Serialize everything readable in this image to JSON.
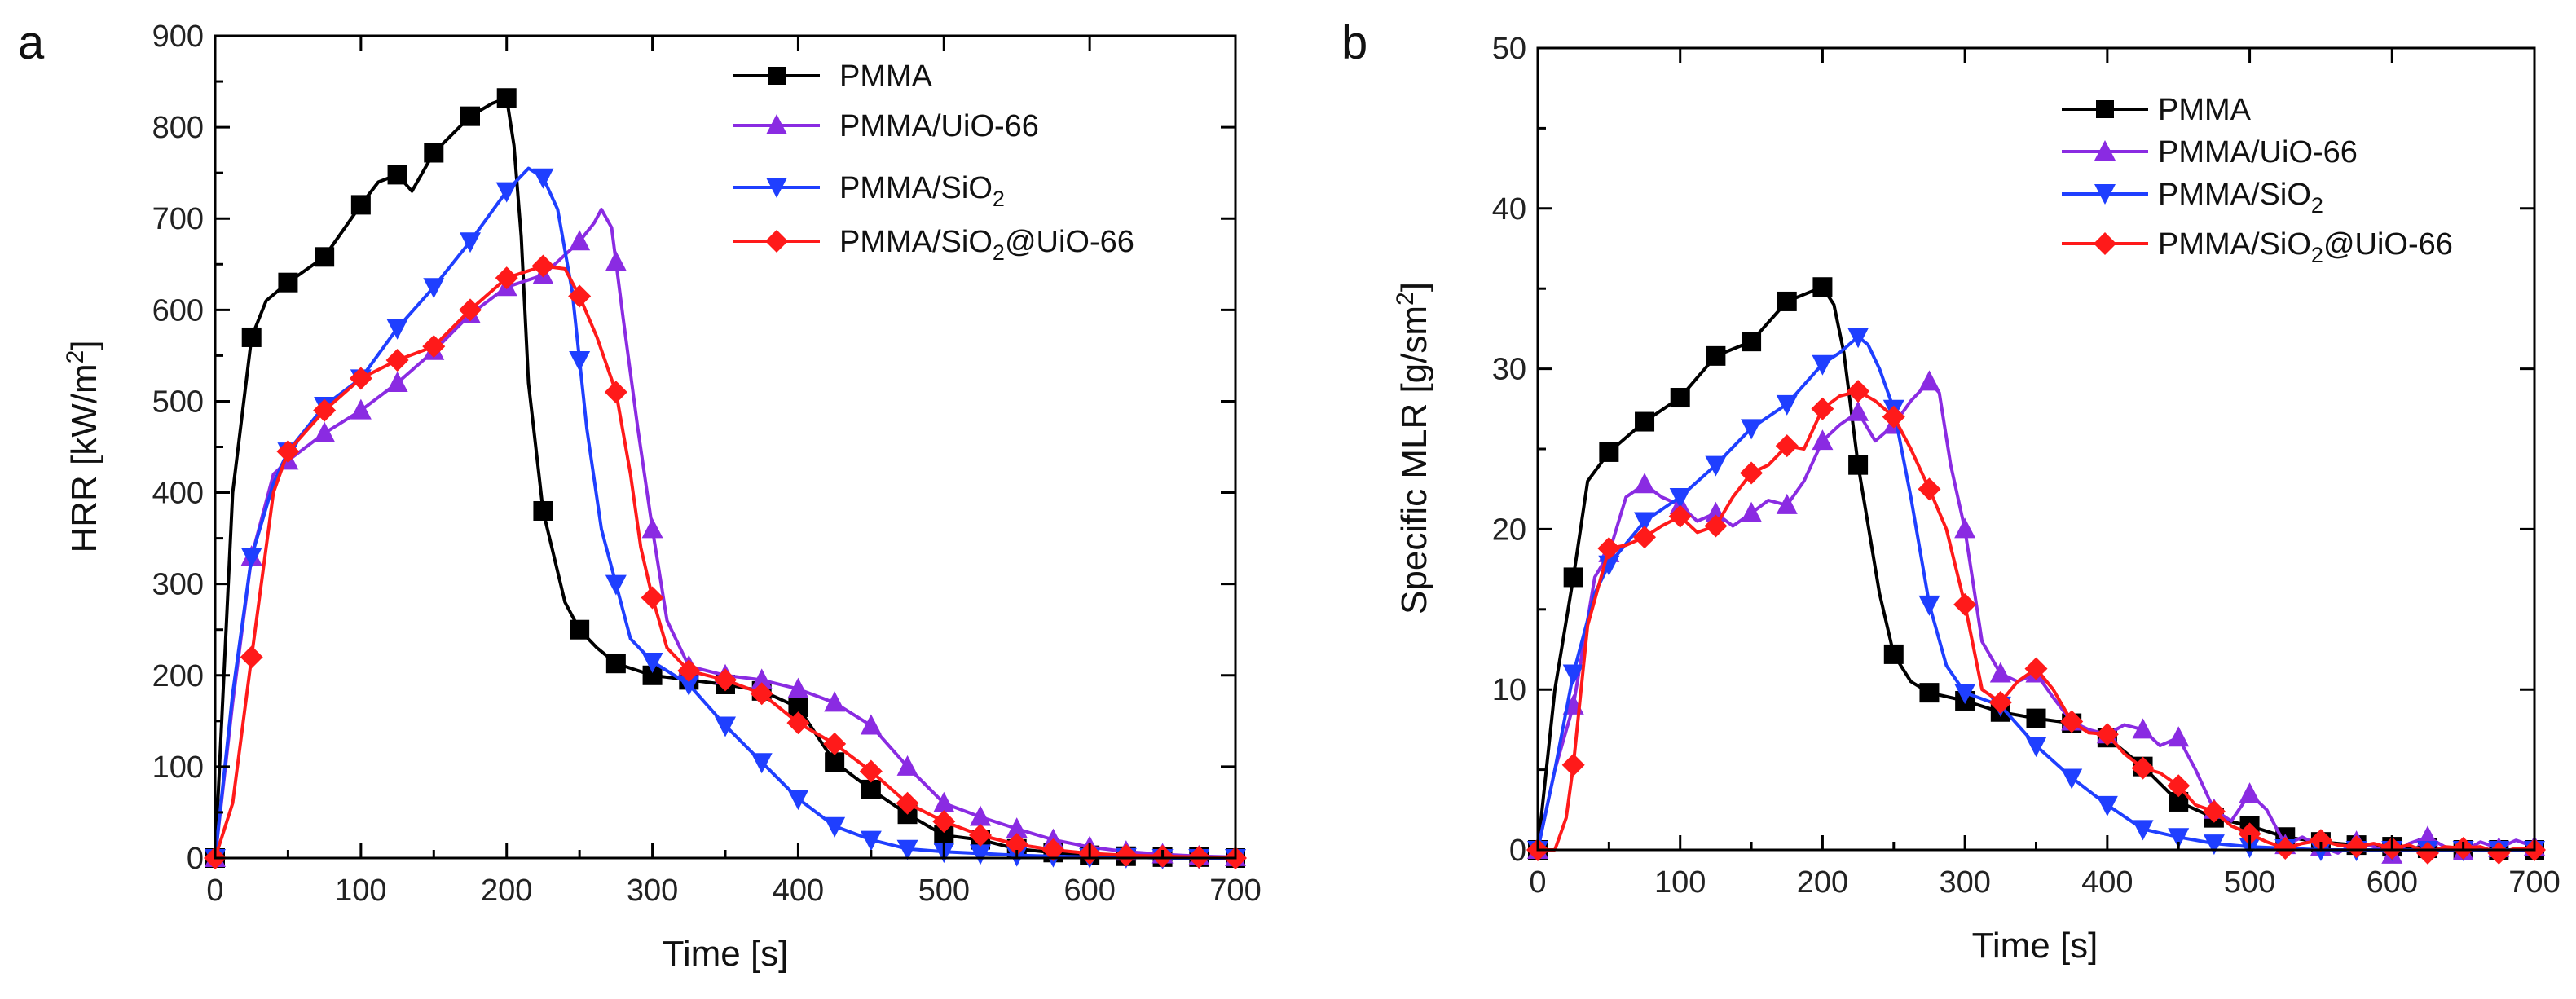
{
  "figure": {
    "panels": [
      "a",
      "b"
    ]
  },
  "legend": {
    "pmma": "PMMA",
    "uio": "PMMA/UiO-66",
    "sio2_base": "PMMA/SiO",
    "sio2_sub": "2",
    "sio2uio_base": "PMMA/SiO",
    "sio2uio_sub": "2",
    "sio2uio_suffix": "@UiO-66"
  },
  "chart_data": [
    {
      "type": "line",
      "panel": "a",
      "xlabel": "Time [s]",
      "ylabel_base": "HRR [kW/m",
      "ylabel_sup": "2",
      "ylabel_end": "]",
      "xlim": [
        0,
        700
      ],
      "ylim": [
        0,
        900
      ],
      "xticks": [
        0,
        100,
        200,
        300,
        400,
        500,
        600,
        700
      ],
      "yticks": [
        0,
        100,
        200,
        300,
        400,
        500,
        600,
        700,
        800,
        900
      ],
      "series": [
        {
          "name": "PMMA",
          "color": "#000000",
          "marker": "square",
          "x": [
            0,
            12,
            25,
            35,
            50,
            75,
            100,
            112,
            125,
            135,
            150,
            175,
            190,
            200,
            205,
            210,
            215,
            225,
            240,
            250,
            262,
            275,
            300,
            325,
            350,
            375,
            400,
            425,
            450,
            475,
            500,
            525,
            550,
            575,
            600,
            625,
            650,
            675,
            700
          ],
          "y": [
            0,
            400,
            570,
            610,
            630,
            658,
            715,
            740,
            748,
            730,
            772,
            812,
            826,
            832,
            780,
            680,
            520,
            380,
            280,
            250,
            230,
            213,
            200,
            195,
            190,
            183,
            165,
            105,
            75,
            48,
            25,
            20,
            10,
            6,
            3,
            2,
            1,
            1,
            0
          ],
          "markers": [
            0,
            25,
            50,
            75,
            100,
            125,
            150,
            175,
            200,
            225,
            250,
            275,
            300,
            325,
            350,
            375,
            400,
            425,
            450,
            475,
            500,
            525,
            550,
            575,
            600,
            625,
            650,
            675,
            700
          ]
        },
        {
          "name": "PMMA/UiO-66",
          "color": "#8a2be2",
          "marker": "triangle-up",
          "x": [
            0,
            12,
            25,
            40,
            50,
            75,
            100,
            125,
            150,
            175,
            200,
            225,
            250,
            260,
            265,
            272,
            280,
            290,
            300,
            310,
            325,
            350,
            375,
            400,
            425,
            450,
            475,
            500,
            525,
            550,
            575,
            600,
            625,
            650,
            675,
            700
          ],
          "y": [
            0,
            170,
            330,
            420,
            435,
            465,
            490,
            520,
            555,
            595,
            625,
            638,
            675,
            695,
            710,
            690,
            590,
            470,
            360,
            260,
            210,
            200,
            195,
            185,
            170,
            145,
            100,
            60,
            45,
            32,
            20,
            12,
            7,
            4,
            2,
            1
          ],
          "markers": [
            0,
            25,
            50,
            75,
            100,
            125,
            150,
            175,
            200,
            225,
            250,
            275,
            300,
            325,
            350,
            375,
            400,
            425,
            450,
            475,
            500,
            525,
            550,
            575,
            600,
            625,
            650,
            675,
            700
          ]
        },
        {
          "name": "PMMA/SiO2",
          "color": "#1f3fff",
          "marker": "triangle-down",
          "x": [
            0,
            12,
            25,
            40,
            50,
            75,
            100,
            125,
            150,
            175,
            200,
            215,
            225,
            235,
            245,
            255,
            265,
            275,
            285,
            300,
            325,
            350,
            375,
            400,
            425,
            450,
            475,
            500,
            525,
            550,
            575,
            600,
            625,
            650,
            675,
            700
          ],
          "y": [
            0,
            180,
            330,
            410,
            445,
            495,
            525,
            580,
            625,
            675,
            730,
            755,
            745,
            710,
            620,
            470,
            360,
            300,
            240,
            215,
            190,
            145,
            105,
            65,
            35,
            20,
            10,
            7,
            5,
            3,
            2,
            1,
            1,
            0,
            0,
            0
          ],
          "markers": [
            0,
            25,
            50,
            75,
            100,
            125,
            150,
            175,
            200,
            225,
            250,
            275,
            300,
            325,
            350,
            375,
            400,
            425,
            450,
            475,
            500,
            525,
            550,
            575,
            600,
            625,
            650,
            675,
            700
          ]
        },
        {
          "name": "PMMA/SiO2@UiO-66",
          "color": "#ff1a1a",
          "marker": "diamond",
          "x": [
            0,
            12,
            25,
            40,
            50,
            75,
            100,
            125,
            150,
            175,
            200,
            225,
            240,
            250,
            262,
            275,
            285,
            292,
            300,
            310,
            325,
            350,
            375,
            400,
            425,
            450,
            475,
            500,
            525,
            550,
            575,
            600,
            625,
            650,
            675,
            700
          ],
          "y": [
            0,
            60,
            220,
            400,
            445,
            490,
            525,
            545,
            560,
            600,
            635,
            648,
            645,
            615,
            570,
            510,
            420,
            340,
            285,
            230,
            205,
            195,
            180,
            148,
            125,
            95,
            60,
            40,
            25,
            15,
            9,
            5,
            3,
            2,
            1,
            0
          ],
          "markers": [
            0,
            25,
            50,
            75,
            100,
            125,
            150,
            175,
            200,
            225,
            250,
            275,
            300,
            325,
            350,
            375,
            400,
            425,
            450,
            475,
            500,
            525,
            550,
            575,
            600,
            625,
            650,
            675,
            700
          ]
        }
      ]
    },
    {
      "type": "line",
      "panel": "b",
      "xlabel": "Time [s]",
      "ylabel_base": "Specific MLR [g/sm",
      "ylabel_sup": "2",
      "ylabel_end": "]",
      "xlim": [
        0,
        700
      ],
      "ylim": [
        0,
        50
      ],
      "xticks": [
        0,
        100,
        200,
        300,
        400,
        500,
        600,
        700
      ],
      "yticks": [
        0,
        10,
        20,
        30,
        40,
        50
      ],
      "series": [
        {
          "name": "PMMA",
          "color": "#000000",
          "marker": "square",
          "x": [
            0,
            12,
            25,
            35,
            50,
            75,
            100,
            125,
            150,
            175,
            200,
            208,
            215,
            225,
            240,
            250,
            262,
            275,
            300,
            325,
            350,
            375,
            400,
            425,
            450,
            475,
            500,
            525,
            550,
            575,
            600,
            625,
            650,
            675,
            700
          ],
          "y": [
            0,
            10,
            17,
            23,
            24.8,
            26.7,
            28.2,
            30.8,
            31.7,
            34.2,
            35.1,
            34.0,
            31.0,
            24.0,
            16.0,
            12.2,
            10.5,
            9.8,
            9.3,
            8.6,
            8.2,
            7.9,
            7.0,
            5.2,
            3.0,
            2.0,
            1.5,
            0.8,
            0.5,
            0.3,
            0.2,
            0.1,
            0,
            0,
            0
          ],
          "markers": [
            0,
            25,
            50,
            75,
            100,
            125,
            150,
            175,
            200,
            225,
            250,
            275,
            300,
            325,
            350,
            375,
            400,
            425,
            450,
            475,
            500,
            525,
            550,
            575,
            600,
            625,
            650,
            675,
            700
          ]
        },
        {
          "name": "PMMA/UiO-66",
          "color": "#8a2be2",
          "marker": "triangle-up",
          "x": [
            0,
            12,
            25,
            40,
            50,
            62,
            75,
            87,
            100,
            112,
            125,
            137,
            150,
            162,
            175,
            187,
            200,
            212,
            225,
            237,
            250,
            262,
            275,
            282,
            290,
            300,
            312,
            325,
            337,
            350,
            362,
            375,
            387,
            400,
            412,
            425,
            437,
            450,
            462,
            475,
            487,
            500,
            512,
            525,
            537,
            550,
            562,
            575,
            587,
            600,
            612,
            625,
            637,
            650,
            662,
            675,
            687,
            700
          ],
          "y": [
            0,
            5,
            9,
            17,
            18.5,
            22,
            22.8,
            22.0,
            21.5,
            20.5,
            21.0,
            20.2,
            21.0,
            21.8,
            21.5,
            23.0,
            25.5,
            26.5,
            27.3,
            25.5,
            26.5,
            28.0,
            29.2,
            28.5,
            24.0,
            20.0,
            13.0,
            11.0,
            10.5,
            11.0,
            9.5,
            8.0,
            7.5,
            7.2,
            7.8,
            7.5,
            6.5,
            7.0,
            5.0,
            2.5,
            1.8,
            3.5,
            2.5,
            0.3,
            0.8,
            0.2,
            -0.2,
            0.5,
            0.2,
            -0.3,
            0.4,
            0.8,
            0.2,
            -0.1,
            0.5,
            0.1,
            0.6,
            0.2
          ],
          "markers": [
            0,
            25,
            50,
            75,
            100,
            125,
            150,
            175,
            200,
            225,
            250,
            275,
            300,
            325,
            350,
            375,
            400,
            425,
            450,
            475,
            500,
            525,
            550,
            575,
            600,
            625,
            650,
            675,
            700
          ]
        },
        {
          "name": "PMMA/SiO2",
          "color": "#1f3fff",
          "marker": "triangle-down",
          "x": [
            0,
            12,
            25,
            40,
            50,
            75,
            100,
            125,
            150,
            175,
            200,
            212,
            225,
            232,
            240,
            250,
            262,
            275,
            287,
            300,
            325,
            350,
            375,
            400,
            425,
            450,
            475,
            500,
            525,
            550,
            575,
            600,
            625,
            650,
            675,
            700
          ],
          "y": [
            0,
            5,
            11,
            16,
            17.8,
            20.5,
            22.0,
            24.0,
            26.3,
            27.8,
            30.3,
            31.0,
            32.0,
            31.5,
            30.0,
            27.5,
            22.0,
            15.3,
            11.5,
            9.8,
            9.0,
            6.5,
            4.5,
            2.8,
            1.3,
            0.8,
            0.4,
            0.2,
            0.1,
            0,
            0,
            0,
            0,
            0,
            0,
            0
          ],
          "markers": [
            0,
            25,
            50,
            75,
            100,
            125,
            150,
            175,
            200,
            225,
            250,
            275,
            300,
            325,
            350,
            375,
            400,
            425,
            450,
            475,
            500,
            525,
            550,
            575,
            600,
            625,
            650,
            675,
            700
          ]
        },
        {
          "name": "PMMA/SiO2@UiO-66",
          "color": "#ff1a1a",
          "marker": "diamond",
          "x": [
            0,
            12,
            20,
            25,
            35,
            50,
            62,
            75,
            87,
            100,
            112,
            125,
            137,
            150,
            162,
            175,
            187,
            200,
            212,
            225,
            237,
            250,
            262,
            275,
            287,
            300,
            312,
            325,
            337,
            350,
            362,
            375,
            387,
            400,
            412,
            425,
            437,
            450,
            462,
            475,
            487,
            500,
            512,
            525,
            537,
            550,
            562,
            575,
            587,
            600,
            612,
            625,
            637,
            650,
            662,
            675,
            687,
            700
          ],
          "y": [
            0,
            0,
            2,
            5.3,
            14,
            18.8,
            19.0,
            19.5,
            20.2,
            20.8,
            19.8,
            20.2,
            22.0,
            23.5,
            24.0,
            25.2,
            25.0,
            27.5,
            28.3,
            28.6,
            28.0,
            27.0,
            25.0,
            22.5,
            20.0,
            15.3,
            10.0,
            9.2,
            10.5,
            11.3,
            10.0,
            8.0,
            7.3,
            7.2,
            6.0,
            5.1,
            4.8,
            4.0,
            2.8,
            2.4,
            1.5,
            1.0,
            0.5,
            0.1,
            0.4,
            0.6,
            0.3,
            0.2,
            0.4,
            0.1,
            0.3,
            -0.2,
            0.2,
            0.1,
            0.2,
            -0.2,
            0.1,
            0
          ],
          "markers": [
            0,
            25,
            50,
            75,
            100,
            125,
            150,
            175,
            200,
            225,
            250,
            275,
            300,
            325,
            350,
            375,
            400,
            425,
            450,
            475,
            500,
            525,
            550,
            575,
            600,
            625,
            650,
            675,
            700
          ]
        }
      ]
    }
  ]
}
